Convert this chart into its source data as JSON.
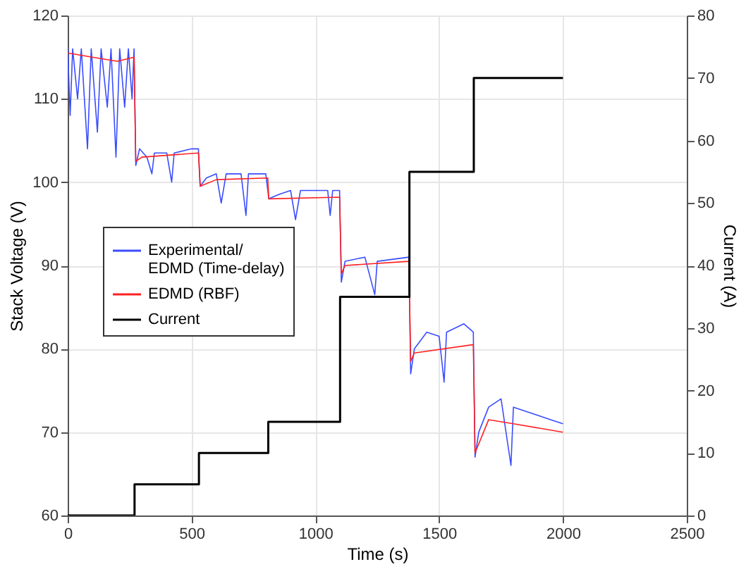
{
  "chart_data": {
    "type": "line",
    "xlabel": "Time (s)",
    "ylabel": "Stack Voltage (V)",
    "y2label": "Current (A)",
    "xlim": [
      0,
      2500
    ],
    "xticks": [
      0,
      500,
      1000,
      1500,
      2000,
      2500
    ],
    "ylim": [
      60,
      120
    ],
    "yticks": [
      60,
      70,
      80,
      90,
      100,
      110,
      120
    ],
    "y2lim": [
      0,
      80
    ],
    "y2ticks": [
      0,
      10,
      20,
      30,
      40,
      50,
      60,
      70,
      80
    ],
    "grid": true,
    "legend": "left",
    "line_style": "solid",
    "marker": "none",
    "series": [
      {
        "name": "Experimental/\nEDMD (Time-delay)",
        "color": "#3a4dff",
        "x": [
          0,
          10,
          20,
          40,
          55,
          80,
          95,
          120,
          135,
          160,
          175,
          195,
          210,
          230,
          245,
          260,
          268,
          275,
          290,
          320,
          340,
          350,
          400,
          420,
          430,
          500,
          528,
          535,
          560,
          600,
          620,
          640,
          700,
          720,
          730,
          800,
          812,
          850,
          900,
          920,
          940,
          1050,
          1060,
          1070,
          1098,
          1105,
          1120,
          1200,
          1240,
          1250,
          1378,
          1385,
          1400,
          1450,
          1500,
          1520,
          1530,
          1600,
          1638,
          1645,
          1660,
          1700,
          1750,
          1790,
          1800,
          1900,
          1950,
          2000
        ],
        "values": [
          116,
          108,
          116,
          110,
          116,
          104,
          116,
          106,
          116,
          109,
          116,
          103,
          116,
          109,
          116,
          110,
          116,
          102,
          104,
          103,
          101,
          103.5,
          103.5,
          100,
          103.5,
          104,
          104,
          99.5,
          100.5,
          101,
          97.5,
          101,
          101,
          96,
          101,
          101,
          98,
          98.5,
          99,
          95.5,
          99,
          99,
          96,
          99,
          99,
          88,
          90.5,
          91,
          86.5,
          90.5,
          91,
          77,
          80,
          82,
          81.5,
          76,
          82,
          83,
          82,
          67,
          70,
          73,
          74,
          66,
          73,
          72,
          71.5,
          71
        ]
      },
      {
        "name": "EDMD (RBF)",
        "color": "#ff2020",
        "x": [
          0,
          100,
          200,
          268,
          275,
          300,
          528,
          535,
          600,
          808,
          812,
          1098,
          1105,
          1120,
          1378,
          1385,
          1400,
          1638,
          1645,
          1700,
          1800,
          2000
        ],
        "values": [
          115.5,
          115,
          114.5,
          115,
          102.5,
          103,
          103.5,
          99.5,
          100.3,
          100.5,
          98,
          98.2,
          89,
          90,
          90.5,
          78.5,
          79.5,
          80.5,
          67.5,
          71.5,
          71,
          70
        ]
      },
      {
        "name": "Current",
        "color": "#000000",
        "type": "step",
        "axis": "y2",
        "x": [
          0,
          270,
          530,
          810,
          1100,
          1380,
          1640,
          2000
        ],
        "values": [
          0,
          5,
          10,
          15,
          35,
          55,
          70,
          70
        ]
      }
    ]
  }
}
